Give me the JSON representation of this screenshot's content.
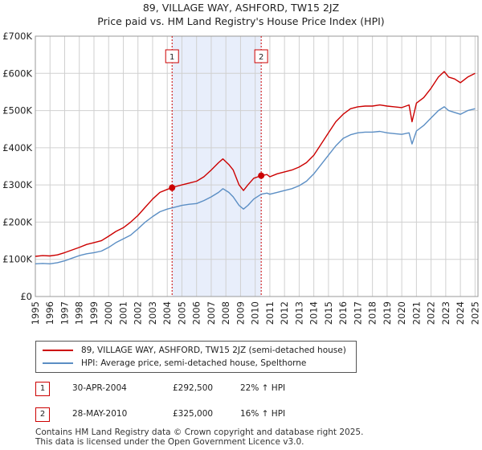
{
  "chart_data": {
    "type": "line",
    "title": "89, VILLAGE WAY, ASHFORD, TW15 2JZ",
    "subtitle": "Price paid vs. HM Land Registry's House Price Index (HPI)",
    "xlim": [
      1995,
      2025.2
    ],
    "ylim": [
      0,
      700000
    ],
    "y_ticks": [
      {
        "value": 0,
        "label": "£0"
      },
      {
        "value": 100000,
        "label": "£100K"
      },
      {
        "value": 200000,
        "label": "£200K"
      },
      {
        "value": 300000,
        "label": "£300K"
      },
      {
        "value": 400000,
        "label": "£400K"
      },
      {
        "value": 500000,
        "label": "£500K"
      },
      {
        "value": 600000,
        "label": "£600K"
      },
      {
        "value": 700000,
        "label": "£700K"
      }
    ],
    "x_ticks": [
      "1995",
      "1996",
      "1997",
      "1998",
      "1999",
      "2000",
      "2001",
      "2002",
      "2003",
      "2004",
      "2005",
      "2006",
      "2007",
      "2008",
      "2009",
      "2010",
      "2011",
      "2012",
      "2013",
      "2014",
      "2015",
      "2016",
      "2017",
      "2018",
      "2019",
      "2020",
      "2021",
      "2022",
      "2023",
      "2024",
      "2025"
    ],
    "shaded_period": [
      2004.33,
      2010.41
    ],
    "colors": {
      "property": "#cc0000",
      "hpi": "#5b8ec4",
      "shade": "#e8eefb",
      "marker_line": "#cc0000"
    },
    "series": [
      {
        "name": "89, VILLAGE WAY, ASHFORD, TW15 2JZ (semi-detached house)",
        "color": "#cc0000",
        "points": [
          [
            1995.0,
            108000
          ],
          [
            1995.5,
            110000
          ],
          [
            1996.0,
            109000
          ],
          [
            1996.5,
            112000
          ],
          [
            1997.0,
            118000
          ],
          [
            1997.5,
            125000
          ],
          [
            1998.0,
            132000
          ],
          [
            1998.5,
            140000
          ],
          [
            1999.0,
            145000
          ],
          [
            1999.5,
            150000
          ],
          [
            2000.0,
            162000
          ],
          [
            2000.5,
            175000
          ],
          [
            2001.0,
            185000
          ],
          [
            2001.5,
            200000
          ],
          [
            2002.0,
            218000
          ],
          [
            2002.5,
            240000
          ],
          [
            2003.0,
            262000
          ],
          [
            2003.5,
            280000
          ],
          [
            2004.0,
            288000
          ],
          [
            2004.33,
            292500
          ],
          [
            2004.6,
            296000
          ],
          [
            2005.0,
            300000
          ],
          [
            2005.5,
            305000
          ],
          [
            2006.0,
            310000
          ],
          [
            2006.5,
            322000
          ],
          [
            2007.0,
            340000
          ],
          [
            2007.5,
            360000
          ],
          [
            2007.8,
            370000
          ],
          [
            2008.2,
            355000
          ],
          [
            2008.5,
            340000
          ],
          [
            2008.9,
            300000
          ],
          [
            2009.2,
            285000
          ],
          [
            2009.5,
            300000
          ],
          [
            2009.9,
            318000
          ],
          [
            2010.41,
            325000
          ],
          [
            2010.8,
            328000
          ],
          [
            2011.0,
            322000
          ],
          [
            2011.5,
            330000
          ],
          [
            2012.0,
            335000
          ],
          [
            2012.5,
            340000
          ],
          [
            2013.0,
            348000
          ],
          [
            2013.5,
            360000
          ],
          [
            2014.0,
            380000
          ],
          [
            2014.5,
            410000
          ],
          [
            2015.0,
            440000
          ],
          [
            2015.5,
            470000
          ],
          [
            2016.0,
            490000
          ],
          [
            2016.5,
            505000
          ],
          [
            2017.0,
            510000
          ],
          [
            2017.5,
            512000
          ],
          [
            2018.0,
            512000
          ],
          [
            2018.5,
            515000
          ],
          [
            2019.0,
            512000
          ],
          [
            2019.5,
            510000
          ],
          [
            2020.0,
            508000
          ],
          [
            2020.5,
            515000
          ],
          [
            2020.7,
            470000
          ],
          [
            2021.0,
            520000
          ],
          [
            2021.5,
            535000
          ],
          [
            2022.0,
            560000
          ],
          [
            2022.5,
            590000
          ],
          [
            2022.9,
            605000
          ],
          [
            2023.2,
            590000
          ],
          [
            2023.6,
            585000
          ],
          [
            2024.0,
            575000
          ],
          [
            2024.5,
            590000
          ],
          [
            2025.0,
            600000
          ]
        ]
      },
      {
        "name": "HPI: Average price, semi-detached house, Spelthorne",
        "color": "#5b8ec4",
        "points": [
          [
            1995.0,
            88000
          ],
          [
            1995.5,
            89000
          ],
          [
            1996.0,
            88000
          ],
          [
            1996.5,
            91000
          ],
          [
            1997.0,
            96000
          ],
          [
            1997.5,
            103000
          ],
          [
            1998.0,
            110000
          ],
          [
            1998.5,
            115000
          ],
          [
            1999.0,
            118000
          ],
          [
            1999.5,
            122000
          ],
          [
            2000.0,
            132000
          ],
          [
            2000.5,
            145000
          ],
          [
            2001.0,
            155000
          ],
          [
            2001.5,
            165000
          ],
          [
            2002.0,
            182000
          ],
          [
            2002.5,
            200000
          ],
          [
            2003.0,
            215000
          ],
          [
            2003.5,
            228000
          ],
          [
            2004.0,
            235000
          ],
          [
            2004.5,
            240000
          ],
          [
            2005.0,
            245000
          ],
          [
            2005.5,
            248000
          ],
          [
            2006.0,
            250000
          ],
          [
            2006.5,
            258000
          ],
          [
            2007.0,
            268000
          ],
          [
            2007.5,
            280000
          ],
          [
            2007.8,
            290000
          ],
          [
            2008.2,
            280000
          ],
          [
            2008.5,
            268000
          ],
          [
            2008.9,
            245000
          ],
          [
            2009.2,
            235000
          ],
          [
            2009.5,
            245000
          ],
          [
            2009.9,
            262000
          ],
          [
            2010.41,
            275000
          ],
          [
            2010.8,
            278000
          ],
          [
            2011.0,
            275000
          ],
          [
            2011.5,
            280000
          ],
          [
            2012.0,
            285000
          ],
          [
            2012.5,
            290000
          ],
          [
            2013.0,
            298000
          ],
          [
            2013.5,
            310000
          ],
          [
            2014.0,
            330000
          ],
          [
            2014.5,
            355000
          ],
          [
            2015.0,
            380000
          ],
          [
            2015.5,
            405000
          ],
          [
            2016.0,
            425000
          ],
          [
            2016.5,
            435000
          ],
          [
            2017.0,
            440000
          ],
          [
            2017.5,
            442000
          ],
          [
            2018.0,
            442000
          ],
          [
            2018.5,
            444000
          ],
          [
            2019.0,
            440000
          ],
          [
            2019.5,
            438000
          ],
          [
            2020.0,
            436000
          ],
          [
            2020.5,
            440000
          ],
          [
            2020.7,
            410000
          ],
          [
            2021.0,
            445000
          ],
          [
            2021.5,
            460000
          ],
          [
            2022.0,
            480000
          ],
          [
            2022.5,
            500000
          ],
          [
            2022.9,
            510000
          ],
          [
            2023.2,
            500000
          ],
          [
            2023.6,
            495000
          ],
          [
            2024.0,
            490000
          ],
          [
            2024.5,
            500000
          ],
          [
            2025.0,
            505000
          ]
        ]
      }
    ],
    "sales": [
      {
        "n": "1",
        "x": 2004.33,
        "y": 292500
      },
      {
        "n": "2",
        "x": 2010.41,
        "y": 325000
      }
    ]
  },
  "legend": {
    "property_label": "89, VILLAGE WAY, ASHFORD, TW15 2JZ (semi-detached house)",
    "hpi_label": "HPI: Average price, semi-detached house, Spelthorne"
  },
  "sales_table": [
    {
      "n": "1",
      "date": "30-APR-2004",
      "price": "£292,500",
      "hpi": "22% ↑ HPI"
    },
    {
      "n": "2",
      "date": "28-MAY-2010",
      "price": "£325,000",
      "hpi": "16% ↑ HPI"
    }
  ],
  "footer": {
    "line1": "Contains HM Land Registry data © Crown copyright and database right 2025.",
    "line2": "This data is licensed under the Open Government Licence v3.0."
  }
}
